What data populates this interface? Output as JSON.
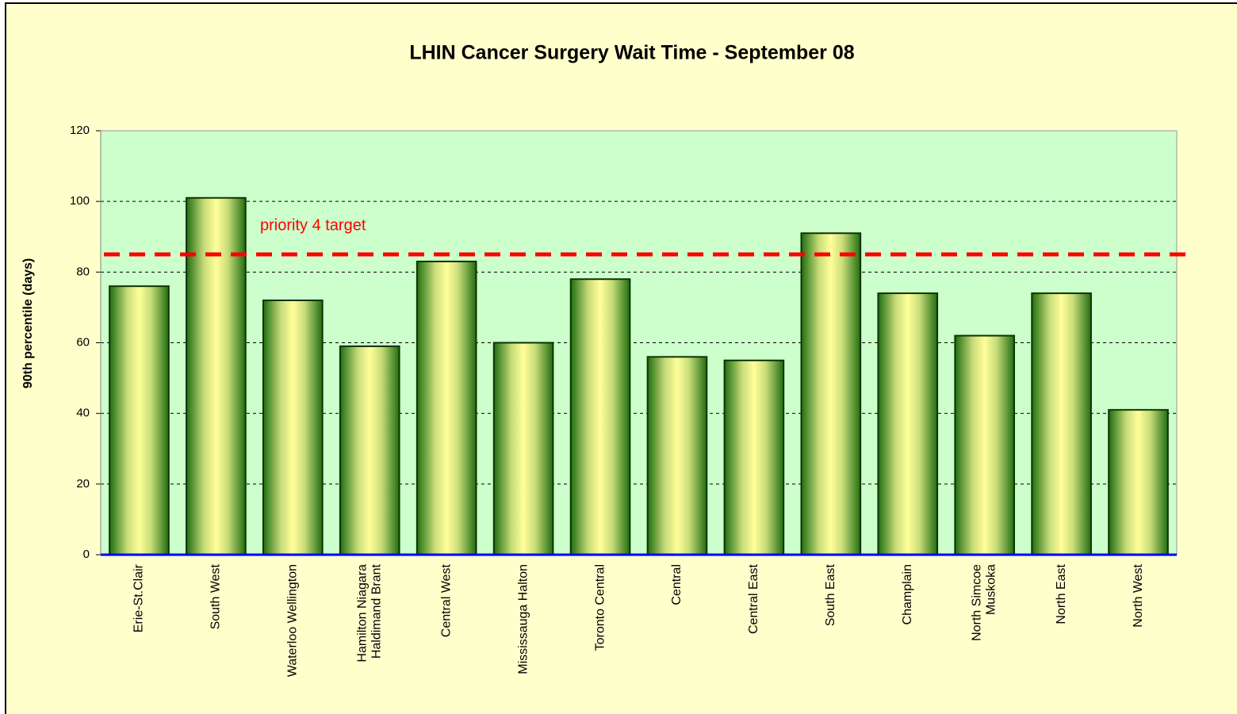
{
  "chart_data": {
    "type": "bar",
    "title": "LHIN Cancer Surgery Wait Time - September 08",
    "y_label": "90th percentile (days)",
    "categories": [
      "Erie-St.Clair",
      "South West",
      "Waterloo Wellington",
      "Hamilton Niagara\nHaldimand Brant",
      "Central West",
      "Mississauga Halton",
      "Toronto Central",
      "Central",
      "Central East",
      "South East",
      "Champlain",
      "North Simcoe\nMuskoka",
      "North East",
      "North West"
    ],
    "values": [
      76,
      101,
      72,
      59,
      83,
      60,
      78,
      56,
      55,
      91,
      74,
      62,
      74,
      41
    ],
    "color": "#2e7d12",
    "ylim": [
      0,
      120
    ],
    "yticks": [
      0,
      20,
      40,
      60,
      80,
      100,
      120
    ],
    "grid": true,
    "target": {
      "value": 85,
      "label": "priority 4 target",
      "color": "#ff0000"
    }
  }
}
